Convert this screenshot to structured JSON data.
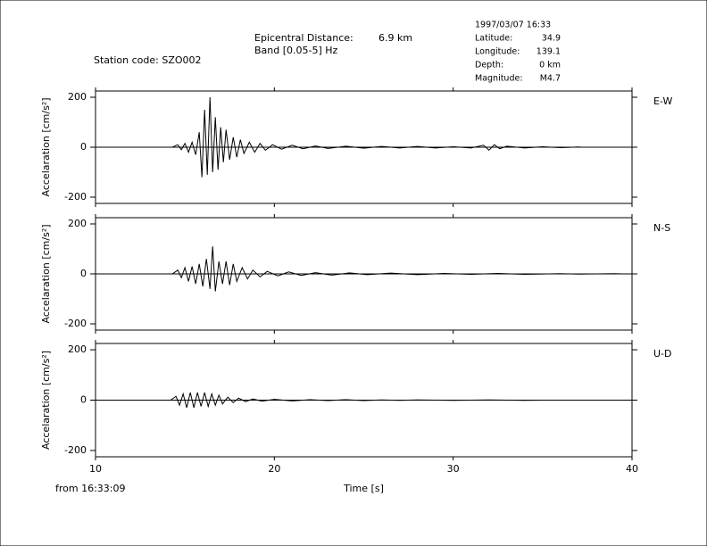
{
  "header": {
    "station": "Station code: SZO002",
    "distance_label": "Epicentral Distance:",
    "distance_value": "6.9 km",
    "band": "Band [0.05-5] Hz",
    "datetime": "1997/03/07 16:33",
    "info": [
      [
        "Latitude:",
        "34.9"
      ],
      [
        "Longitude:",
        "139.1"
      ],
      [
        "Depth:",
        "0 km"
      ],
      [
        "Magnitude:",
        "M4.7"
      ]
    ],
    "start_time": "from 16:33:09"
  },
  "chart_data": [
    {
      "type": "line",
      "ylabel": "Accelaration [cm/s²]",
      "xlim": [
        10,
        40
      ],
      "xticks": [
        10,
        20,
        30,
        40
      ],
      "show_xtick_labels": false,
      "ylim": [
        -225,
        225
      ],
      "yticks": [
        -200,
        0,
        200
      ],
      "x": [
        14.3,
        14.6,
        14.8,
        15.0,
        15.2,
        15.4,
        15.6,
        15.8,
        15.95,
        16.1,
        16.25,
        16.4,
        16.55,
        16.7,
        16.85,
        17.0,
        17.15,
        17.3,
        17.5,
        17.7,
        17.9,
        18.1,
        18.3,
        18.6,
        18.9,
        19.2,
        19.5,
        19.9,
        20.4,
        21.0,
        21.6,
        22.3,
        23.0,
        24.0,
        25.0,
        26.0,
        27.0,
        28.0,
        29.0,
        30.0,
        31.0,
        31.7,
        32.0,
        32.3,
        32.6,
        33.0,
        34.0,
        35.0,
        36.0,
        37.0,
        37.2
      ],
      "series": [
        {
          "name": "E-W",
          "color": "#000000",
          "values": [
            0,
            10,
            -10,
            15,
            -20,
            20,
            -30,
            60,
            -120,
            150,
            -110,
            200,
            -100,
            120,
            -90,
            80,
            -60,
            70,
            -50,
            40,
            -40,
            30,
            -25,
            20,
            -20,
            15,
            -12,
            10,
            -8,
            8,
            -6,
            5,
            -5,
            4,
            -4,
            3,
            -3,
            3,
            -3,
            2,
            -3,
            8,
            -12,
            10,
            -6,
            4,
            -3,
            2,
            -2,
            1,
            0
          ]
        }
      ]
    },
    {
      "type": "line",
      "ylabel": "Accelaration [cm/s²]",
      "xlim": [
        10,
        40
      ],
      "xticks": [
        10,
        20,
        30,
        40
      ],
      "show_xtick_labels": false,
      "ylim": [
        -225,
        225
      ],
      "yticks": [
        -200,
        0,
        200
      ],
      "x": [
        14.3,
        14.6,
        14.8,
        15.0,
        15.2,
        15.4,
        15.6,
        15.8,
        16.0,
        16.2,
        16.4,
        16.55,
        16.7,
        16.9,
        17.1,
        17.3,
        17.5,
        17.7,
        17.9,
        18.2,
        18.5,
        18.8,
        19.2,
        19.6,
        20.2,
        20.8,
        21.5,
        22.3,
        23.2,
        24.2,
        25.2,
        26.5,
        28.0,
        29.5,
        31.0,
        32.5,
        34.0,
        36.0,
        37.0,
        38.0,
        39.0,
        39.5
      ],
      "series": [
        {
          "name": "N-S",
          "color": "#000000",
          "values": [
            0,
            15,
            -15,
            25,
            -30,
            30,
            -40,
            40,
            -50,
            60,
            -60,
            110,
            -70,
            50,
            -40,
            50,
            -45,
            40,
            -30,
            25,
            -20,
            15,
            -12,
            10,
            -8,
            8,
            -6,
            5,
            -5,
            4,
            -3,
            3,
            -3,
            2,
            -2,
            2,
            -2,
            1,
            -1,
            0,
            1,
            0
          ]
        }
      ]
    },
    {
      "type": "line",
      "ylabel": "Accelaration [cm/s²]",
      "xlabel": "Time [s]",
      "xlim": [
        10,
        40
      ],
      "xticks": [
        10,
        20,
        30,
        40
      ],
      "show_xtick_labels": true,
      "ylim": [
        -225,
        225
      ],
      "yticks": [
        -200,
        0,
        200
      ],
      "x": [
        14.2,
        14.5,
        14.7,
        14.9,
        15.1,
        15.3,
        15.5,
        15.7,
        15.9,
        16.1,
        16.3,
        16.5,
        16.7,
        16.9,
        17.1,
        17.4,
        17.7,
        18.0,
        18.4,
        18.8,
        19.3,
        20.0,
        21.0,
        22.0,
        23.0,
        24.0,
        25.0,
        26.0,
        27.0,
        28.0,
        30.0,
        32.0,
        34.0,
        35.0
      ],
      "series": [
        {
          "name": "U-D",
          "color": "#000000",
          "values": [
            0,
            15,
            -20,
            25,
            -30,
            30,
            -30,
            30,
            -25,
            30,
            -25,
            25,
            -20,
            20,
            -15,
            12,
            -10,
            8,
            -6,
            5,
            -4,
            3,
            -3,
            2,
            -2,
            2,
            -2,
            1,
            -1,
            1,
            -1,
            1,
            -1,
            0
          ]
        }
      ]
    }
  ]
}
